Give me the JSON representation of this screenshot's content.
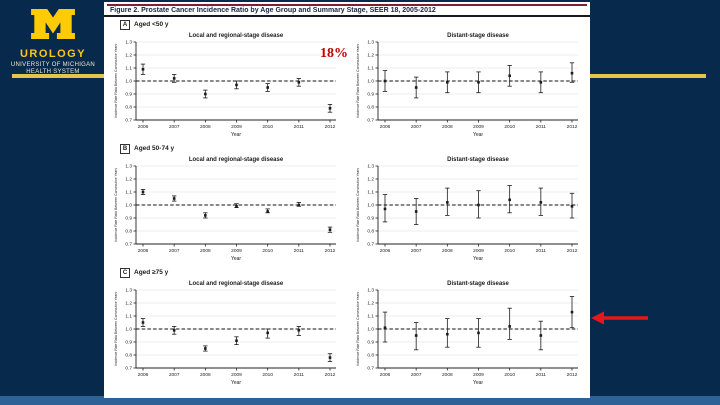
{
  "colors": {
    "slide_background": "#07294b",
    "footer_bar": "#2e6296",
    "accent_line": "#e3c44c",
    "maize": "#fdc913",
    "figure_top_rule": "#7e1f33",
    "percent_label": "#bf0000",
    "arrow": "#e51818"
  },
  "logo": {
    "block_m_color": "#ffcb05",
    "title": "UROLOGY",
    "subtitle_line1": "UNIVERSITY OF MICHIGAN",
    "subtitle_line2": "HEALTH SYSTEM"
  },
  "annotations": {
    "percent_label": "18%",
    "arrow_direction": "left"
  },
  "figure": {
    "title": "Figure 2. Prostate Cancer Incidence Ratio by Age Group and Summary Stage, SEER 18, 2005-2012",
    "panels": [
      {
        "letter": "A",
        "age_label": "Aged <50 y"
      },
      {
        "letter": "B",
        "age_label": "Aged 50-74 y"
      },
      {
        "letter": "C",
        "age_label": "Aged ≥75 y"
      }
    ]
  },
  "chart_data": [
    {
      "type": "scatter",
      "panel": "A",
      "title": "Local and regional-stage disease",
      "xlabel": "Year",
      "ylabel": "Incidence Rate Ratio Between Consecutive Years",
      "x": [
        2006,
        2007,
        2008,
        2009,
        2010,
        2011,
        2012
      ],
      "y": [
        1.09,
        1.02,
        0.9,
        0.97,
        0.95,
        0.99,
        0.79
      ],
      "ci_low": [
        1.05,
        0.99,
        0.87,
        0.94,
        0.92,
        0.96,
        0.76
      ],
      "ci_high": [
        1.13,
        1.05,
        0.93,
        1.0,
        0.98,
        1.02,
        0.82
      ],
      "ylim": [
        0.7,
        1.3
      ],
      "yticks": [
        0.7,
        0.8,
        0.9,
        1.0,
        1.1,
        1.2,
        1.3
      ],
      "reference_line": 1.0,
      "grid": true,
      "legend": "none"
    },
    {
      "type": "scatter",
      "panel": "A",
      "title": "Distant-stage disease",
      "xlabel": "Year",
      "ylabel": "Incidence Rate Ratio Between Consecutive Years",
      "x": [
        2006,
        2007,
        2008,
        2009,
        2010,
        2011,
        2012
      ],
      "y": [
        1.0,
        0.95,
        0.99,
        0.99,
        1.04,
        0.99,
        1.06
      ],
      "ci_low": [
        0.92,
        0.87,
        0.91,
        0.91,
        0.96,
        0.91,
        0.99
      ],
      "ci_high": [
        1.08,
        1.03,
        1.07,
        1.07,
        1.12,
        1.07,
        1.14
      ],
      "ylim": [
        0.7,
        1.3
      ],
      "yticks": [
        0.7,
        0.8,
        0.9,
        1.0,
        1.1,
        1.2,
        1.3
      ],
      "reference_line": 1.0,
      "grid": true,
      "legend": "none"
    },
    {
      "type": "scatter",
      "panel": "B",
      "title": "Local and regional-stage disease",
      "xlabel": "Year",
      "ylabel": "Incidence Rate Ratio Between Consecutive Years",
      "x": [
        2006,
        2007,
        2008,
        2009,
        2010,
        2011,
        2012
      ],
      "y": [
        1.1,
        1.05,
        0.92,
        0.99,
        0.95,
        1.0,
        0.81
      ],
      "ci_low": [
        1.08,
        1.03,
        0.9,
        0.98,
        0.94,
        0.99,
        0.79
      ],
      "ci_high": [
        1.12,
        1.07,
        0.94,
        1.01,
        0.97,
        1.02,
        0.83
      ],
      "ylim": [
        0.7,
        1.3
      ],
      "yticks": [
        0.7,
        0.8,
        0.9,
        1.0,
        1.1,
        1.2,
        1.3
      ],
      "reference_line": 1.0,
      "grid": true,
      "legend": "none"
    },
    {
      "type": "scatter",
      "panel": "B",
      "title": "Distant-stage disease",
      "xlabel": "Year",
      "ylabel": "Incidence Rate Ratio Between Consecutive Years",
      "x": [
        2006,
        2007,
        2008,
        2009,
        2010,
        2011,
        2012
      ],
      "y": [
        0.97,
        0.95,
        1.02,
        1.0,
        1.04,
        1.02,
        0.99
      ],
      "ci_low": [
        0.87,
        0.85,
        0.92,
        0.9,
        0.94,
        0.92,
        0.9
      ],
      "ci_high": [
        1.08,
        1.05,
        1.13,
        1.11,
        1.15,
        1.13,
        1.09
      ],
      "ylim": [
        0.7,
        1.3
      ],
      "yticks": [
        0.7,
        0.8,
        0.9,
        1.0,
        1.1,
        1.2,
        1.3
      ],
      "reference_line": 1.0,
      "grid": true,
      "legend": "none"
    },
    {
      "type": "scatter",
      "panel": "C",
      "title": "Local and regional-stage disease",
      "xlabel": "Year",
      "ylabel": "Incidence Rate Ratio Between Consecutive Years",
      "x": [
        2006,
        2007,
        2008,
        2009,
        2010,
        2011,
        2012
      ],
      "y": [
        1.05,
        0.99,
        0.85,
        0.91,
        0.97,
        0.99,
        0.78
      ],
      "ci_low": [
        1.02,
        0.96,
        0.83,
        0.88,
        0.93,
        0.95,
        0.75
      ],
      "ci_high": [
        1.08,
        1.02,
        0.87,
        0.94,
        1.0,
        1.02,
        0.81
      ],
      "ylim": [
        0.7,
        1.3
      ],
      "yticks": [
        0.7,
        0.8,
        0.9,
        1.0,
        1.1,
        1.2,
        1.3
      ],
      "reference_line": 1.0,
      "grid": true,
      "legend": "none"
    },
    {
      "type": "scatter",
      "panel": "C",
      "title": "Distant-stage disease",
      "xlabel": "Year",
      "ylabel": "Incidence Rate Ratio Between Consecutive Years",
      "x": [
        2006,
        2007,
        2008,
        2009,
        2010,
        2011,
        2012
      ],
      "y": [
        1.01,
        0.95,
        0.96,
        0.97,
        1.02,
        0.95,
        1.13
      ],
      "ci_low": [
        0.9,
        0.84,
        0.86,
        0.86,
        0.92,
        0.84,
        1.01
      ],
      "ci_high": [
        1.13,
        1.05,
        1.08,
        1.08,
        1.16,
        1.06,
        1.25
      ],
      "ylim": [
        0.7,
        1.3
      ],
      "yticks": [
        0.7,
        0.8,
        0.9,
        1.0,
        1.1,
        1.2,
        1.3
      ],
      "reference_line": 1.0,
      "grid": true,
      "legend": "none"
    }
  ]
}
